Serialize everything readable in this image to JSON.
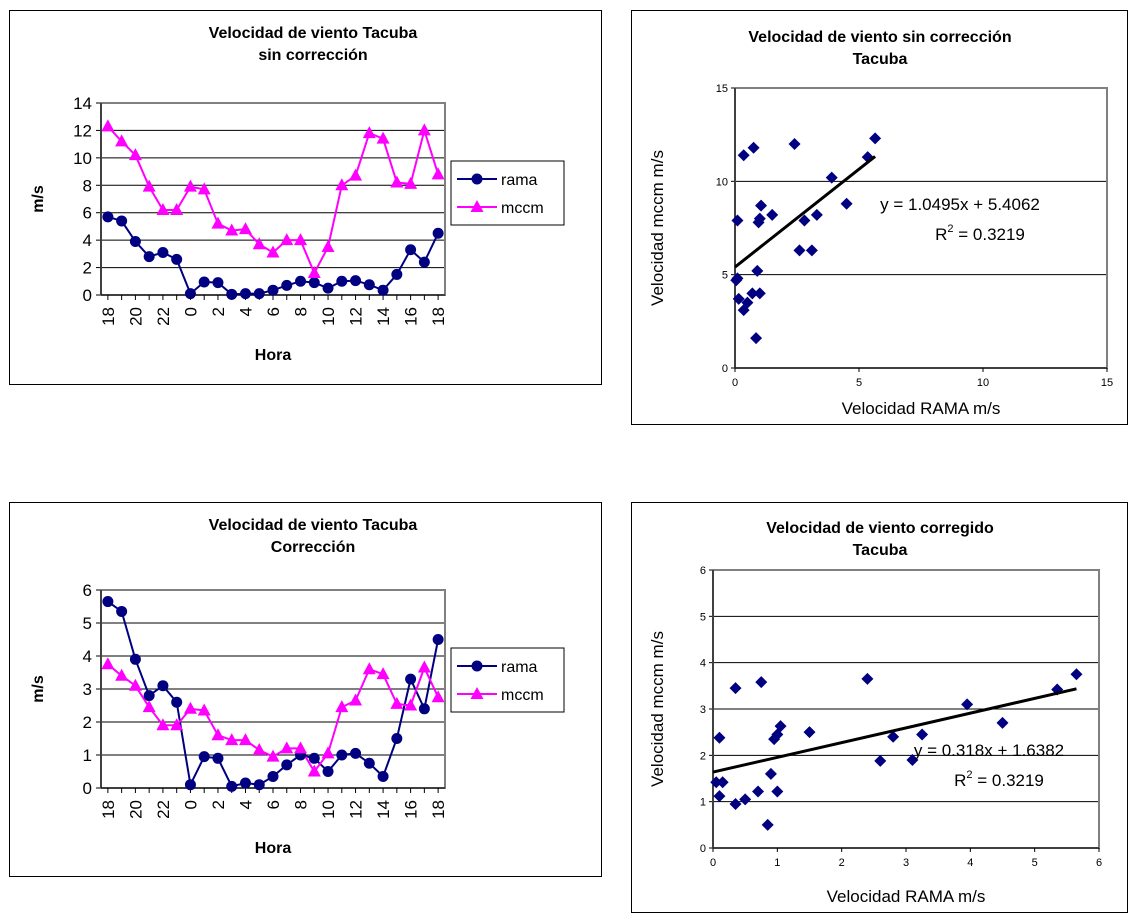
{
  "chart_data": [
    {
      "type": "line",
      "title_lines": [
        "Velocidad de viento Tacuba",
        "sin corrección"
      ],
      "xlabel": "Hora",
      "ylabel": "m/s",
      "ylim": [
        0,
        14
      ],
      "y_ticks": [
        0,
        2,
        4,
        6,
        8,
        10,
        12,
        14
      ],
      "grid": true,
      "legend": "right",
      "categories": [
        "18",
        "19",
        "20",
        "21",
        "22",
        "23",
        "0",
        "1",
        "2",
        "3",
        "4",
        "5",
        "6",
        "7",
        "8",
        "9",
        "10",
        "11",
        "12",
        "13",
        "14",
        "15",
        "16",
        "17",
        "18"
      ],
      "x_tick_labels": [
        "18",
        "",
        "20",
        "",
        "22",
        "",
        "0",
        "",
        "2",
        "",
        "4",
        "",
        "6",
        "",
        "8",
        "",
        "10",
        "",
        "12",
        "",
        "14",
        "",
        "16",
        "",
        "18"
      ],
      "series": [
        {
          "name": "rama",
          "color": "#000080",
          "marker": "circle",
          "values": [
            5.7,
            5.4,
            3.9,
            2.8,
            3.1,
            2.6,
            0.1,
            0.95,
            0.9,
            0.05,
            0.1,
            0.1,
            0.35,
            0.7,
            1.0,
            0.9,
            0.5,
            1.0,
            1.05,
            0.75,
            0.35,
            1.5,
            3.3,
            2.4,
            4.5
          ]
        },
        {
          "name": "mccm",
          "color": "#FF00FF",
          "marker": "triangle",
          "values": [
            12.3,
            11.2,
            10.2,
            7.9,
            6.2,
            6.2,
            7.9,
            7.7,
            5.2,
            4.7,
            4.8,
            3.7,
            3.1,
            4.0,
            4.0,
            1.6,
            3.5,
            8.0,
            8.7,
            11.8,
            11.4,
            8.2,
            8.1,
            12.0,
            8.8
          ]
        }
      ]
    },
    {
      "type": "scatter",
      "title_lines": [
        "Velocidad de viento sin corrección",
        "Tacuba"
      ],
      "xlabel": "Velocidad RAMA m/s",
      "ylabel": "Velocidad mccm m/s",
      "xlim": [
        0,
        15
      ],
      "ylim": [
        0,
        15
      ],
      "x_ticks": [
        0,
        5,
        10,
        15
      ],
      "y_ticks": [
        0,
        5,
        10,
        15
      ],
      "grid": true,
      "color": "#000080",
      "trend": {
        "slope": 1.0495,
        "intercept": 5.4062,
        "x_range": [
          0,
          5.65
        ]
      },
      "equation": "y = 1.0495x + 5.4062",
      "r2_text": "= 0.3219",
      "points": [
        [
          5.65,
          12.3
        ],
        [
          5.35,
          11.3
        ],
        [
          3.9,
          10.2
        ],
        [
          2.8,
          7.9
        ],
        [
          3.1,
          6.3
        ],
        [
          2.6,
          6.3
        ],
        [
          0.1,
          7.9
        ],
        [
          0.95,
          7.8
        ],
        [
          0.9,
          5.2
        ],
        [
          0.05,
          4.7
        ],
        [
          0.1,
          4.8
        ],
        [
          0.15,
          3.7
        ],
        [
          0.35,
          3.1
        ],
        [
          0.7,
          4.0
        ],
        [
          1.0,
          4.0
        ],
        [
          0.85,
          1.6
        ],
        [
          0.5,
          3.5
        ],
        [
          1.0,
          8.0
        ],
        [
          1.05,
          8.7
        ],
        [
          0.75,
          11.8
        ],
        [
          0.35,
          11.4
        ],
        [
          1.5,
          8.2
        ],
        [
          3.3,
          8.2
        ],
        [
          2.4,
          12.0
        ],
        [
          4.5,
          8.8
        ]
      ]
    },
    {
      "type": "line",
      "title_lines": [
        "Velocidad de viento Tacuba",
        "Corrección"
      ],
      "xlabel": "Hora",
      "ylabel": "m/s",
      "ylim": [
        0,
        6
      ],
      "y_ticks": [
        0,
        1,
        2,
        3,
        4,
        5,
        6
      ],
      "grid": true,
      "legend": "right",
      "categories": [
        "18",
        "19",
        "20",
        "21",
        "22",
        "23",
        "0",
        "1",
        "2",
        "3",
        "4",
        "5",
        "6",
        "7",
        "8",
        "9",
        "10",
        "11",
        "12",
        "13",
        "14",
        "15",
        "16",
        "17",
        "18"
      ],
      "x_tick_labels": [
        "18",
        "",
        "20",
        "",
        "22",
        "",
        "0",
        "",
        "2",
        "",
        "4",
        "",
        "6",
        "",
        "8",
        "",
        "10",
        "",
        "12",
        "",
        "14",
        "",
        "16",
        "",
        "18"
      ],
      "series": [
        {
          "name": "rama",
          "color": "#000080",
          "marker": "circle",
          "values": [
            5.65,
            5.35,
            3.9,
            2.8,
            3.1,
            2.6,
            0.1,
            0.95,
            0.9,
            0.05,
            0.15,
            0.1,
            0.35,
            0.7,
            1.0,
            0.9,
            0.5,
            1.0,
            1.05,
            0.75,
            0.35,
            1.5,
            3.3,
            2.4,
            4.5
          ]
        },
        {
          "name": "mccm",
          "color": "#FF00FF",
          "marker": "triangle",
          "values": [
            3.75,
            3.4,
            3.1,
            2.45,
            1.9,
            1.9,
            2.4,
            2.35,
            1.6,
            1.45,
            1.45,
            1.15,
            0.95,
            1.2,
            1.2,
            0.5,
            1.05,
            2.45,
            2.65,
            3.6,
            3.45,
            2.55,
            2.5,
            3.65,
            2.75
          ]
        }
      ]
    },
    {
      "type": "scatter",
      "title_lines": [
        "Velocidad de viento corregido",
        "Tacuba"
      ],
      "xlabel": "Velocidad RAMA m/s",
      "ylabel": "Velocidad mccm m/s",
      "xlim": [
        0,
        6
      ],
      "ylim": [
        0,
        6
      ],
      "x_ticks": [
        0,
        1,
        2,
        3,
        4,
        5,
        6
      ],
      "y_ticks": [
        0,
        1,
        2,
        3,
        4,
        5,
        6
      ],
      "grid": true,
      "color": "#000080",
      "trend": {
        "slope": 0.318,
        "intercept": 1.6382,
        "x_range": [
          0,
          5.65
        ]
      },
      "equation": "y = 0.318x + 1.6382",
      "r2_text": "= 0.3219",
      "points": [
        [
          5.65,
          3.75
        ],
        [
          5.35,
          3.42
        ],
        [
          3.95,
          3.1
        ],
        [
          2.8,
          2.4
        ],
        [
          3.1,
          1.9
        ],
        [
          3.25,
          2.45
        ],
        [
          0.1,
          2.38
        ],
        [
          0.95,
          2.35
        ],
        [
          0.9,
          1.6
        ],
        [
          0.05,
          1.42
        ],
        [
          0.15,
          1.42
        ],
        [
          0.1,
          1.12
        ],
        [
          0.35,
          0.95
        ],
        [
          0.7,
          1.22
        ],
        [
          1.0,
          1.22
        ],
        [
          0.85,
          0.5
        ],
        [
          0.5,
          1.05
        ],
        [
          1.0,
          2.45
        ],
        [
          1.05,
          2.63
        ],
        [
          0.75,
          3.58
        ],
        [
          0.35,
          3.45
        ],
        [
          1.5,
          2.5
        ],
        [
          2.6,
          1.88
        ],
        [
          2.4,
          3.65
        ],
        [
          4.5,
          2.7
        ]
      ]
    }
  ],
  "r2_label": "R",
  "r2_exp": "2"
}
